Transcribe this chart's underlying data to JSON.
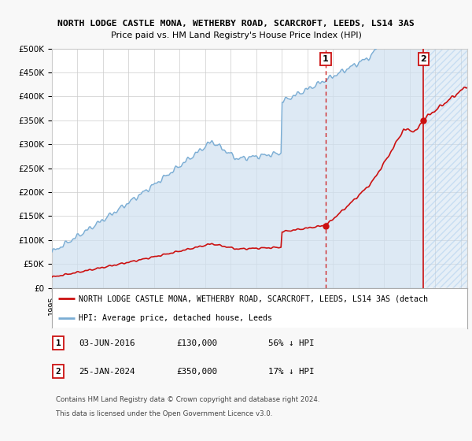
{
  "title": "NORTH LODGE CASTLE MONA, WETHERBY ROAD, SCARCROFT, LEEDS, LS14 3AS",
  "subtitle": "Price paid vs. HM Land Registry's House Price Index (HPI)",
  "ylim": [
    0,
    500000
  ],
  "yticks": [
    0,
    50000,
    100000,
    150000,
    200000,
    250000,
    300000,
    350000,
    400000,
    450000,
    500000
  ],
  "ytick_labels": [
    "£0",
    "£50K",
    "£100K",
    "£150K",
    "£200K",
    "£250K",
    "£300K",
    "£350K",
    "£400K",
    "£450K",
    "£500K"
  ],
  "xlim_start": 1995.0,
  "xlim_end": 2027.5,
  "sale1_date": 2016.42,
  "sale1_price": 130000,
  "sale1_label": "1",
  "sale1_text": "03-JUN-2016",
  "sale1_amount": "£130,000",
  "sale1_hpi": "56% ↓ HPI",
  "sale2_date": 2024.07,
  "sale2_price": 350000,
  "sale2_label": "2",
  "sale2_text": "25-JAN-2024",
  "sale2_amount": "£350,000",
  "sale2_hpi": "17% ↓ HPI",
  "hpi_color": "#7aadd4",
  "hpi_fill_color": "#cfe0f0",
  "property_color": "#cc1111",
  "bg_color": "#f8f8f8",
  "plot_bg": "#ffffff",
  "grid_color": "#cccccc",
  "legend_line1": "NORTH LODGE CASTLE MONA, WETHERBY ROAD, SCARCROFT, LEEDS, LS14 3AS (detach",
  "legend_line2": "HPI: Average price, detached house, Leeds",
  "footer1": "Contains HM Land Registry data © Crown copyright and database right 2024.",
  "footer2": "This data is licensed under the Open Government Licence v3.0."
}
